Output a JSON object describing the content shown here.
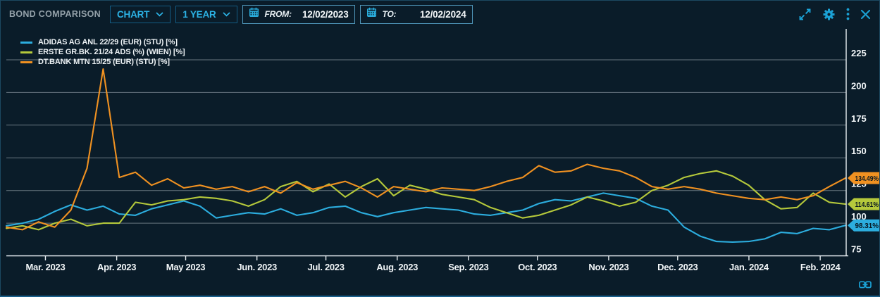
{
  "window": {
    "title": "BOND COMPARISON"
  },
  "toolbar": {
    "view_dropdown": {
      "value": "CHART"
    },
    "range_dropdown": {
      "value": "1 YEAR"
    },
    "from_field": {
      "label": "FROM:",
      "value": "12/02/2023"
    },
    "to_field": {
      "label": "TO:",
      "value": "12/02/2024"
    },
    "icons": [
      "expand-icon",
      "settings-gear-icon",
      "kebab-menu-icon",
      "close-icon"
    ]
  },
  "colors": {
    "background": "#0a1c29",
    "accent": "#2cb3e6",
    "icon": "#1ba2d6",
    "grid": "rgba(197,208,215,0.5)",
    "axis": "#e9eff3",
    "text": "#f2f6f8",
    "badge_text": "#071620",
    "series_blue": "#2cadde",
    "series_green": "#b5c93b",
    "series_orange": "#f09121"
  },
  "legend": {
    "items": [
      {
        "label": "ADIDAS AG ANL 22/29 (EUR) (STU) [%]",
        "color": "#2cadde"
      },
      {
        "label": "ERSTE GR.BK. 21/24 ADS (%) (WIEN) [%]",
        "color": "#b5c93b"
      },
      {
        "label": "DT.BANK MTN 15/25 (EUR) (STU) [%]",
        "color": "#f09121"
      }
    ]
  },
  "chart_data": {
    "type": "line",
    "unit": "%",
    "x_start": "12/02/2023",
    "x_end": "12/02/2024",
    "sampling": "weekly",
    "days_total": 365,
    "x_tick_labels": [
      "Mar. 2023",
      "Apr. 2023",
      "May 2023",
      "Jun. 2023",
      "Jul. 2023",
      "Aug. 2023",
      "Sep. 2023",
      "Oct. 2023",
      "Nov. 2023",
      "Dec. 2023",
      "Jan. 2024",
      "Feb. 2024"
    ],
    "x_tick_day_offsets": [
      17,
      48,
      78,
      109,
      139,
      170,
      201,
      231,
      262,
      292,
      323,
      354
    ],
    "y_ticks": [
      225,
      200,
      175,
      150,
      125,
      100,
      75
    ],
    "ylim": [
      75,
      240
    ],
    "grid": true,
    "legend_position": "top-left",
    "series": [
      {
        "name": "ADIDAS AG ANL 22/29 (EUR) (STU) [%]",
        "color": "#2cadde",
        "last_label": "98.31%",
        "values": [
          98,
          100,
          103,
          109,
          114,
          110,
          113,
          107,
          106,
          111,
          114,
          117,
          113,
          104,
          106,
          108,
          107,
          111,
          106,
          108,
          112,
          113,
          108,
          105,
          108,
          110,
          112,
          111,
          110,
          107,
          106,
          108,
          110,
          115,
          118,
          117,
          120,
          123,
          121,
          119,
          113,
          110,
          97,
          90,
          86,
          85.5,
          86,
          88,
          93,
          92,
          96,
          95,
          98.31
        ]
      },
      {
        "name": "ERSTE GR.BK. 21/24 ADS (%) (WIEN) [%]",
        "color": "#b5c93b",
        "last_label": "114.61%",
        "values": [
          96,
          98,
          95,
          100,
          103,
          98,
          100,
          100,
          116,
          114,
          117,
          118,
          120,
          119,
          117,
          113,
          118,
          128,
          132,
          124,
          130,
          120,
          128,
          134,
          121,
          129,
          126,
          122,
          120,
          118,
          112,
          108,
          104,
          106,
          110,
          114,
          120,
          117,
          113,
          116,
          125,
          129,
          135,
          138,
          140,
          136,
          129,
          118,
          111,
          112,
          123,
          116,
          114.61
        ]
      },
      {
        "name": "DT.BANK MTN 15/25 (EUR) (STU) [%]",
        "color": "#f09121",
        "last_label": "134.49%",
        "values": [
          97,
          95,
          101,
          97,
          110,
          142,
          218,
          135,
          139,
          129,
          134,
          127,
          129,
          126,
          128,
          124,
          128,
          123,
          131,
          126,
          129,
          132,
          127,
          120,
          128,
          126,
          124,
          127,
          126,
          125,
          128,
          132,
          135,
          144,
          139,
          140,
          145,
          142,
          140,
          135,
          128,
          126,
          128,
          126,
          123,
          121,
          119,
          118,
          120,
          118,
          121,
          128,
          134.49
        ]
      }
    ]
  },
  "footer": {
    "icon": "link-icon"
  }
}
